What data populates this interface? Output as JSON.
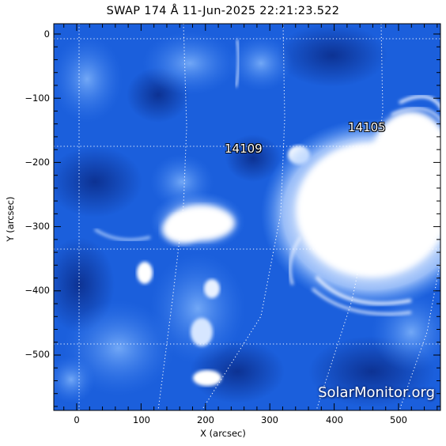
{
  "title": "SWAP 174 Å 11-Jun-2025 22:21:23.522",
  "x_axis": {
    "label": "X (arcsec)",
    "ticks": [
      "0",
      "100",
      "200",
      "300",
      "400",
      "500"
    ]
  },
  "y_axis": {
    "label": "Y (arcsec)",
    "ticks": [
      "0",
      "−100",
      "−200",
      "−300",
      "−400",
      "−500"
    ]
  },
  "active_regions": [
    {
      "label": "14109"
    },
    {
      "label": "14105"
    }
  ],
  "watermark": "SolarMonitor.org",
  "colors": {
    "colormap_dark": "#0b2c8c",
    "colormap_mid": "#1f6ee8",
    "colormap_bright": "#ffffff",
    "grid": "#ffffff"
  }
}
